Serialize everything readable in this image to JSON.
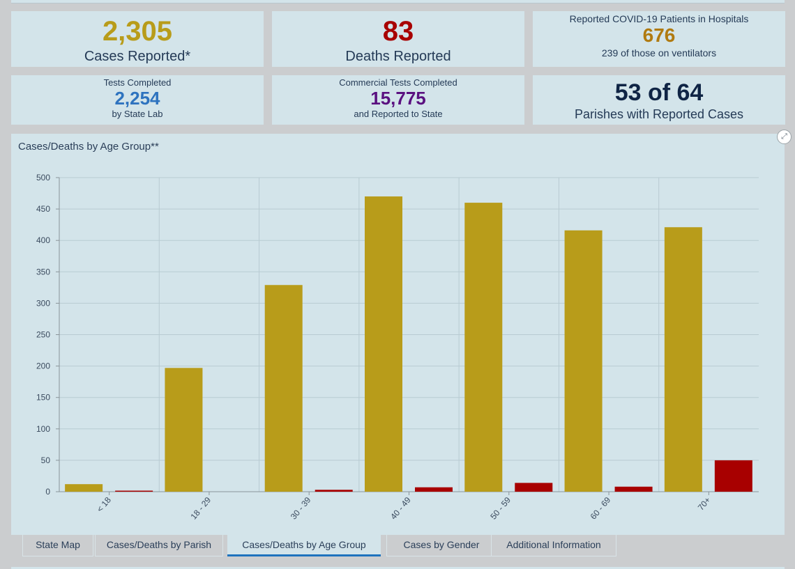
{
  "cards": {
    "cases": {
      "value": "2,305",
      "label": "Cases Reported*",
      "color": "#b89c1a"
    },
    "deaths": {
      "value": "83",
      "label": "Deaths Reported",
      "color": "#a80000"
    },
    "hospital": {
      "title": "Reported COVID-19 Patients in Hospitals",
      "value": "676",
      "subtitle": "239 of those on ventilators",
      "color": "#b07a10"
    },
    "tests": {
      "title": "Tests Completed",
      "value": "2,254",
      "subtitle": "by State Lab",
      "color": "#2e73bf"
    },
    "commercial": {
      "title": "Commercial Tests Completed",
      "value": "15,775",
      "subtitle": "and Reported to State",
      "color": "#5a1080"
    },
    "parishes": {
      "value": "53 of 64",
      "label": "Parishes with Reported Cases",
      "color": "#0f2445"
    }
  },
  "chart_data": {
    "type": "bar",
    "title": "Cases/Deaths by Age Group**",
    "categories": [
      "< 18",
      "18 - 29",
      "30 - 39",
      "40 - 49",
      "50 - 59",
      "60 - 69",
      "70+"
    ],
    "series": [
      {
        "name": "Cases",
        "color": "#b89c1a",
        "values": [
          12,
          197,
          329,
          470,
          460,
          416,
          421
        ]
      },
      {
        "name": "Deaths",
        "color": "#a80000",
        "values": [
          1,
          0,
          3,
          7,
          14,
          8,
          50
        ]
      }
    ],
    "yticks": [
      0,
      50,
      100,
      150,
      200,
      250,
      300,
      350,
      400,
      450,
      500
    ],
    "ylim": [
      0,
      500
    ],
    "xlabel": "",
    "ylabel": "",
    "grid": true,
    "legend": "none"
  },
  "expand_icon": "expand-icon",
  "tabs": [
    {
      "label": "State Map",
      "active": false
    },
    {
      "label": "Cases/Deaths by Parish",
      "active": false
    },
    {
      "label": "Cases/Deaths by Age Group",
      "active": true
    },
    {
      "label": "Cases by Gender",
      "active": false
    },
    {
      "label": "Additional Information",
      "active": false
    }
  ]
}
